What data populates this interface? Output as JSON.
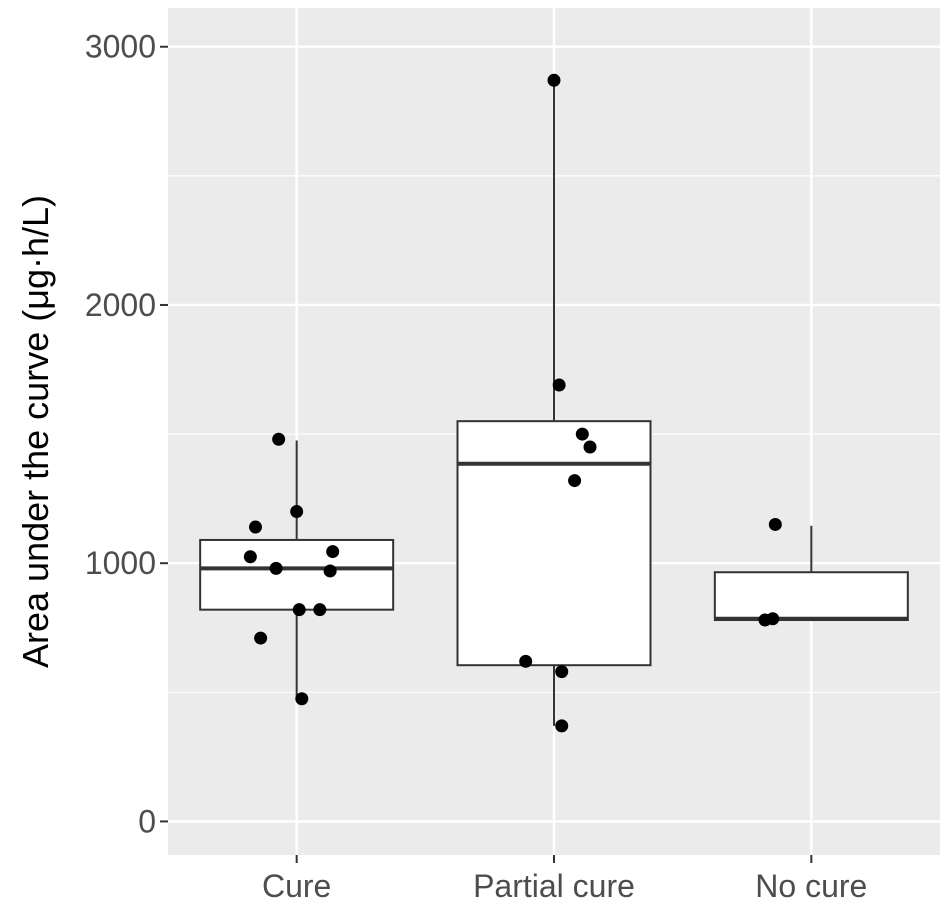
{
  "chart_data": {
    "type": "box",
    "title": "",
    "xlabel": "",
    "ylabel": "Area under the curve (μg·h/L)",
    "categories": [
      "Cure",
      "Partial cure",
      "No cure"
    ],
    "ylim": [
      -130,
      3150
    ],
    "yticks": [
      0,
      1000,
      2000,
      3000
    ],
    "grid": true,
    "colors": {
      "panel": "#ebebeb",
      "grid": "#ffffff",
      "box_fill": "#ffffff",
      "box_line": "#333333",
      "point": "#000000",
      "tick_text": "#4d4d4d"
    },
    "boxes": [
      {
        "category": "Cure",
        "whisker_low": 475,
        "q1": 820,
        "median": 980,
        "q3": 1090,
        "whisker_high": 1475
      },
      {
        "category": "Partial cure",
        "whisker_low": 370,
        "q1": 605,
        "median": 1385,
        "q3": 1550,
        "whisker_high": 2870
      },
      {
        "category": "No cure",
        "whisker_low": 780,
        "q1": 780,
        "median": 785,
        "q3": 965,
        "whisker_high": 1145
      }
    ],
    "points": [
      {
        "category": "Cure",
        "jitter": -0.07,
        "y": 1480
      },
      {
        "category": "Cure",
        "jitter": 0.0,
        "y": 1200
      },
      {
        "category": "Cure",
        "jitter": -0.16,
        "y": 1140
      },
      {
        "category": "Cure",
        "jitter": 0.14,
        "y": 1045
      },
      {
        "category": "Cure",
        "jitter": -0.18,
        "y": 1025
      },
      {
        "category": "Cure",
        "jitter": -0.08,
        "y": 980
      },
      {
        "category": "Cure",
        "jitter": 0.13,
        "y": 970
      },
      {
        "category": "Cure",
        "jitter": 0.01,
        "y": 820
      },
      {
        "category": "Cure",
        "jitter": 0.09,
        "y": 820
      },
      {
        "category": "Cure",
        "jitter": -0.14,
        "y": 710
      },
      {
        "category": "Cure",
        "jitter": 0.02,
        "y": 475
      },
      {
        "category": "Partial cure",
        "jitter": 0.0,
        "y": 2870
      },
      {
        "category": "Partial cure",
        "jitter": 0.02,
        "y": 1690
      },
      {
        "category": "Partial cure",
        "jitter": 0.11,
        "y": 1500
      },
      {
        "category": "Partial cure",
        "jitter": 0.14,
        "y": 1450
      },
      {
        "category": "Partial cure",
        "jitter": 0.08,
        "y": 1320
      },
      {
        "category": "Partial cure",
        "jitter": -0.11,
        "y": 620
      },
      {
        "category": "Partial cure",
        "jitter": 0.03,
        "y": 580
      },
      {
        "category": "Partial cure",
        "jitter": 0.03,
        "y": 370
      },
      {
        "category": "No cure",
        "jitter": -0.14,
        "y": 1150
      },
      {
        "category": "No cure",
        "jitter": -0.15,
        "y": 785
      },
      {
        "category": "No cure",
        "jitter": -0.18,
        "y": 780
      }
    ]
  }
}
